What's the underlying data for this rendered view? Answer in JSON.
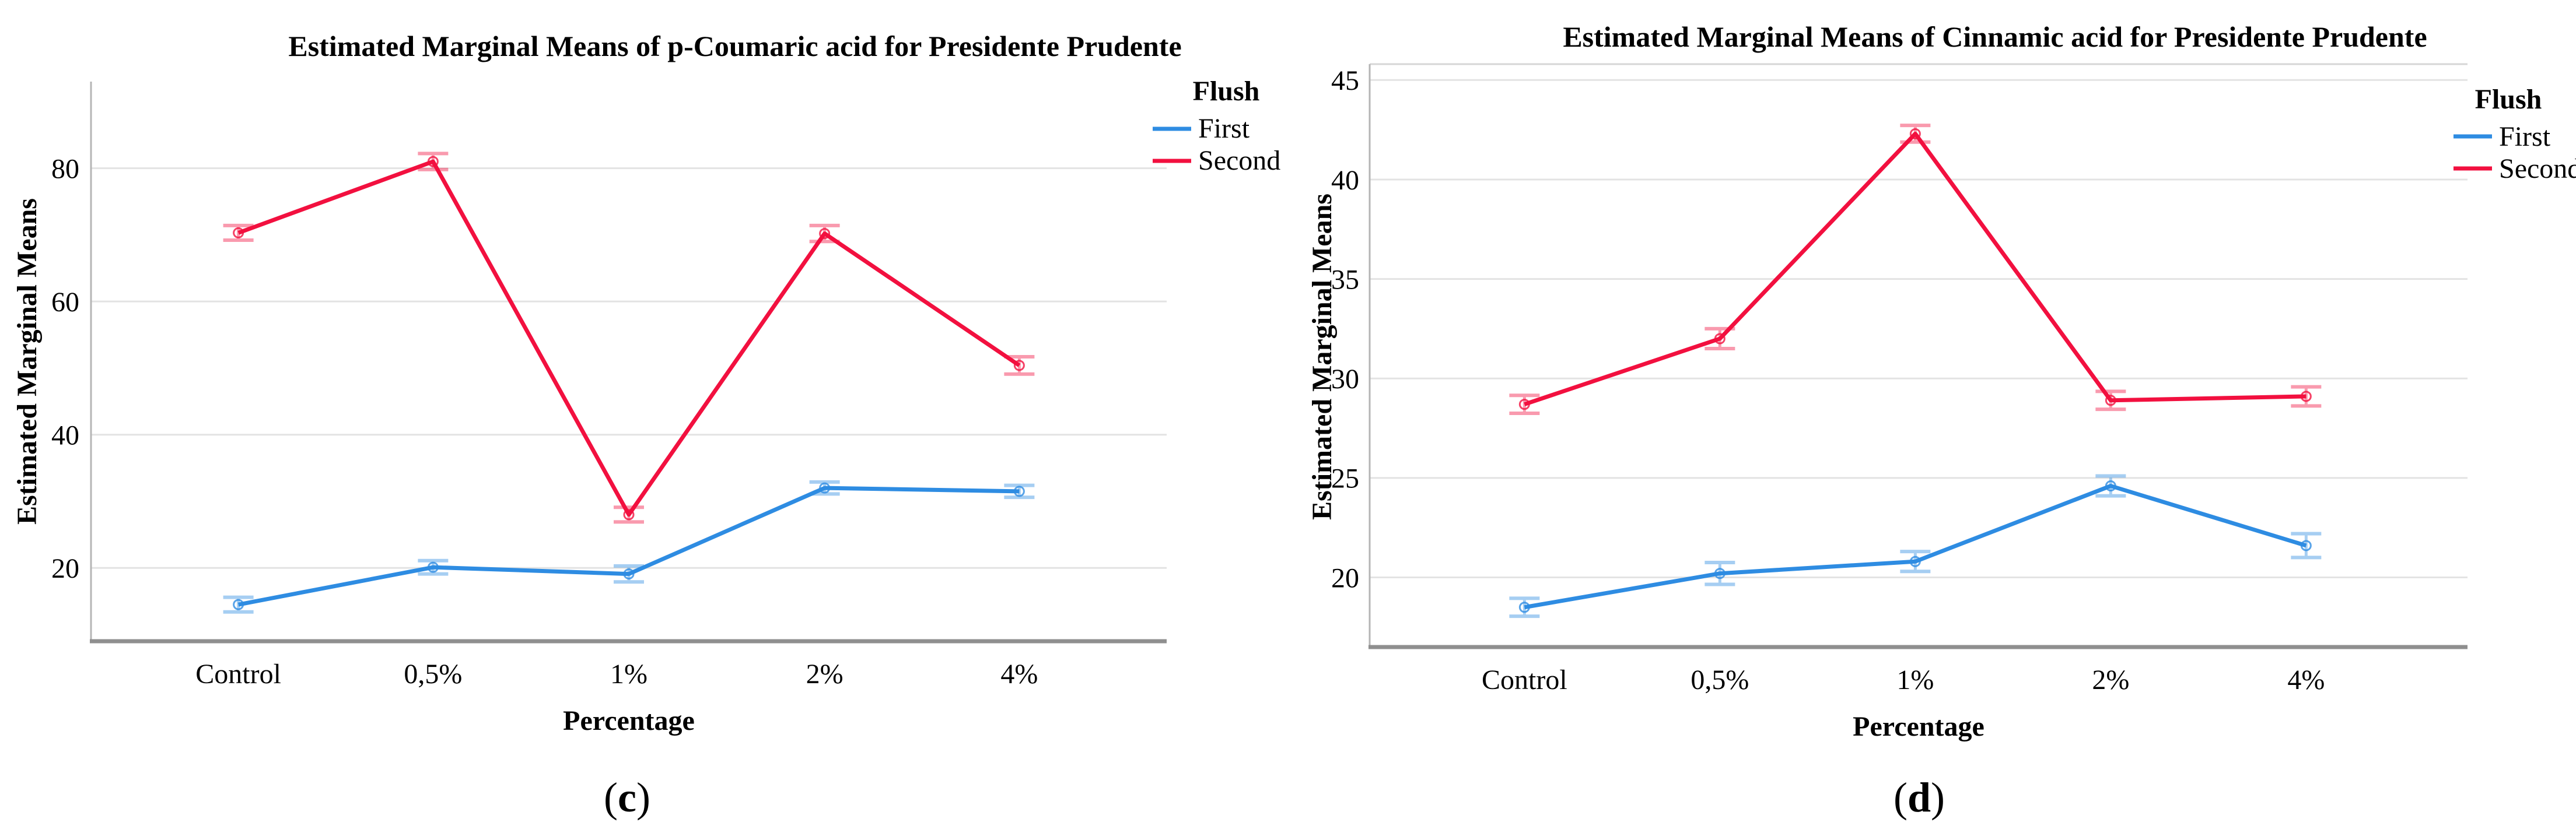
{
  "figure": {
    "background": "#ffffff",
    "captions": {
      "c": {
        "open": "(",
        "letter": "c",
        "close": ")"
      },
      "d": {
        "open": "(",
        "letter": "d",
        "close": ")"
      }
    }
  },
  "colors": {
    "first_series": "#2E8CE2",
    "second_series": "#F2103F",
    "gridline": "#E3E3E3",
    "axis_bottom": "#8F8F8F",
    "axis_left": "#B5B5B5",
    "top_frame": "#D6D6D6"
  },
  "chart_data": [
    {
      "id": "c",
      "type": "line",
      "title": "Estimated Marginal Means of p-Coumaric acid for Presidente Prudente",
      "ylabel": "Estimated Marginal Means",
      "xlabel": "Percentage",
      "legend_title": "Flush",
      "legend_position": "right-top",
      "grid": true,
      "categories": [
        "Control",
        "0,5%",
        "1%",
        "2%",
        "4%"
      ],
      "yticks": [
        20,
        40,
        60,
        80
      ],
      "ylim": [
        9,
        93
      ],
      "series": [
        {
          "name": "First",
          "color": "#2E8CE2",
          "values": [
            14.5,
            20.1,
            19.1,
            32.0,
            31.5
          ],
          "errors": [
            1.1,
            1.0,
            1.2,
            0.9,
            0.9
          ]
        },
        {
          "name": "Second",
          "color": "#F2103F",
          "values": [
            70.3,
            81.0,
            28.0,
            70.2,
            50.4
          ],
          "errors": [
            1.1,
            1.2,
            1.1,
            1.2,
            1.3
          ]
        }
      ],
      "caption": {
        "open": "(",
        "letter": "c",
        "close": ")"
      }
    },
    {
      "id": "d",
      "type": "line",
      "title": "Estimated Marginal Means of Cinnamic acid for Presidente Prudente",
      "ylabel": "Estimated Marginal Means",
      "xlabel": "Percentage",
      "legend_title": "Flush",
      "legend_position": "right-top",
      "grid": true,
      "categories": [
        "Control",
        "0,5%",
        "1%",
        "2%",
        "4%"
      ],
      "yticks": [
        20,
        25,
        30,
        35,
        40,
        45
      ],
      "ylim": [
        16.5,
        45.8
      ],
      "series": [
        {
          "name": "First",
          "color": "#2E8CE2",
          "values": [
            18.5,
            20.2,
            20.8,
            24.6,
            21.6
          ],
          "errors": [
            0.45,
            0.55,
            0.5,
            0.5,
            0.6
          ]
        },
        {
          "name": "Second",
          "color": "#F2103F",
          "values": [
            28.7,
            32.0,
            42.3,
            28.9,
            29.1
          ],
          "errors": [
            0.45,
            0.5,
            0.42,
            0.45,
            0.48
          ]
        }
      ],
      "caption": {
        "open": "(",
        "letter": "d",
        "close": ")"
      }
    }
  ]
}
